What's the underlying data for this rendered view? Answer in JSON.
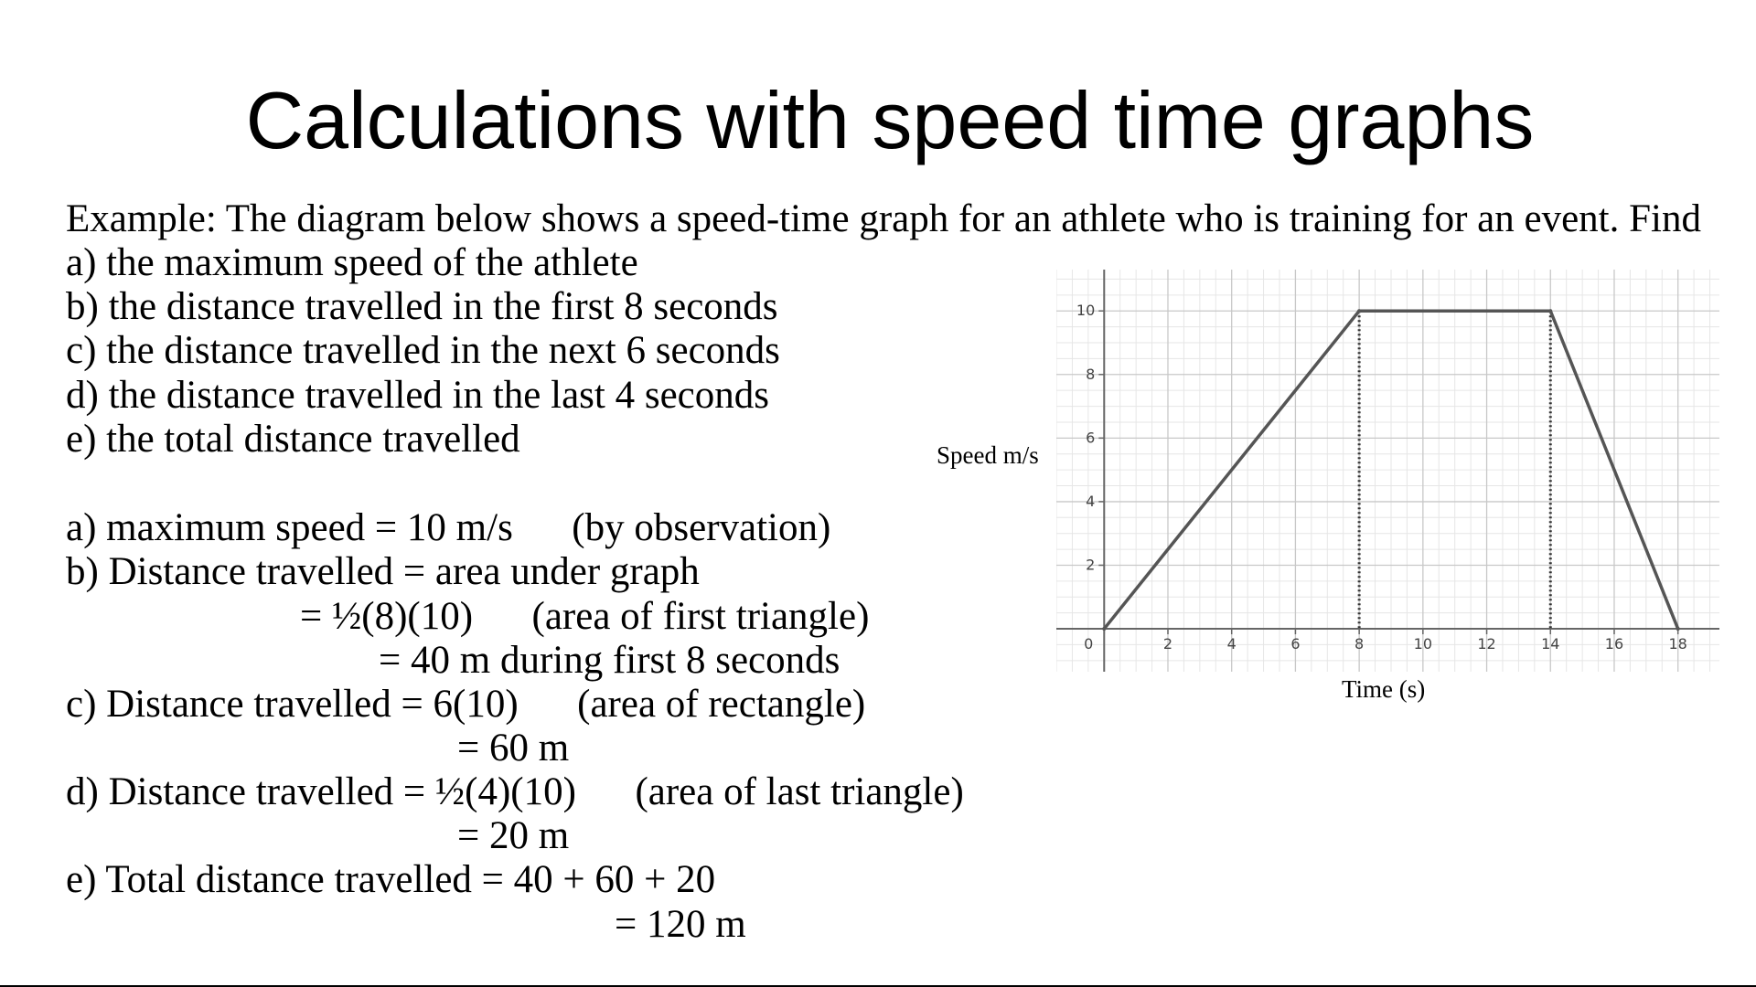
{
  "title": "Calculations with speed time graphs",
  "intro": "Example: The diagram below shows a speed-time graph for an athlete who is training for an event. Find",
  "questions": [
    "a) the maximum speed of the athlete",
    "b) the distance travelled in the first 8 seconds",
    "c) the distance travelled in the next 6 seconds",
    "d) the distance travelled in the last 4 seconds",
    "e) the total distance travelled"
  ],
  "solutions": {
    "a": "a) maximum speed = 10 m/s      (by observation)",
    "b1": "b) Distance travelled = area under graph",
    "b2": "= ½(8)(10)      (area of first triangle)",
    "b3": "= 40 m during first 8 seconds",
    "c1": "c) Distance travelled = 6(10)      (area of rectangle)",
    "c2": "= 60 m",
    "d1": "d) Distance travelled = ½(4)(10)      (area of last triangle)",
    "d2": "= 20 m",
    "e1": "e) Total distance travelled = 40 + 60 + 20",
    "e2": "= 120 m"
  },
  "chart_data": {
    "type": "line",
    "ylabel": "Speed m/s",
    "xlabel": "Time (s)",
    "x": [
      0,
      8,
      14,
      18
    ],
    "y": [
      0,
      10,
      10,
      0
    ],
    "xlim": [
      -1.5,
      19.3
    ],
    "ylim": [
      -1.35,
      11.3
    ],
    "x_ticks": [
      0,
      2,
      4,
      6,
      8,
      10,
      12,
      14,
      16,
      18
    ],
    "y_ticks": [
      2,
      4,
      6,
      8,
      10
    ],
    "y_zero_label": "0",
    "minor_grid_step": 0.5,
    "grid": true,
    "dotted_verticals": [
      8,
      14
    ],
    "line_color": "#555555",
    "major_grid_color": "#c8c8c8",
    "minor_grid_color": "#e6e6e6",
    "axis_color": "#666666",
    "tick_label_color": "#444444"
  }
}
